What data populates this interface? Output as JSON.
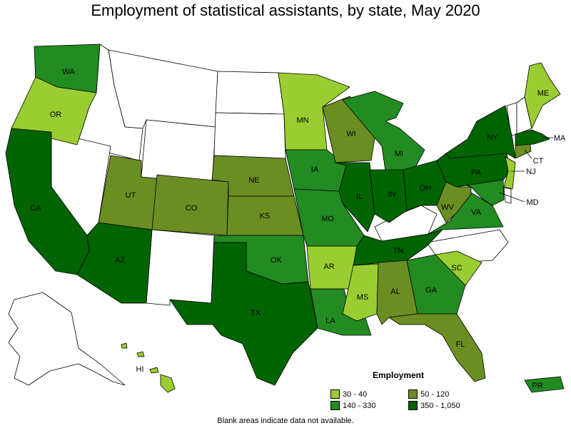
{
  "title": "Employment of statistical assistants, by state, May 2020",
  "colors": {
    "c1": "#9acd32",
    "c2": "#228b22",
    "c3": "#6b8e23",
    "c4": "#006400",
    "blank": "#ffffff"
  },
  "legend": {
    "title": "Employment",
    "items": [
      {
        "label": "30 - 40",
        "color": "#9acd32"
      },
      {
        "label": "50 - 120",
        "color": "#6b8e23"
      },
      {
        "label": "140 - 330",
        "color": "#228b22"
      },
      {
        "label": "350 - 1,050",
        "color": "#006400"
      }
    ]
  },
  "footnote": "Blank areas indicate data not available.",
  "states": [
    {
      "code": "WA",
      "range": "140 - 330"
    },
    {
      "code": "OR",
      "range": "30 - 40"
    },
    {
      "code": "CA",
      "range": "350 - 1,050"
    },
    {
      "code": "AZ",
      "range": "350 - 1,050"
    },
    {
      "code": "UT",
      "range": "50 - 120"
    },
    {
      "code": "CO",
      "range": "50 - 120"
    },
    {
      "code": "NE",
      "range": "50 - 120"
    },
    {
      "code": "KS",
      "range": "50 - 120"
    },
    {
      "code": "OK",
      "range": "140 - 330"
    },
    {
      "code": "TX",
      "range": "350 - 1,050"
    },
    {
      "code": "MN",
      "range": "30 - 40"
    },
    {
      "code": "IA",
      "range": "140 - 330"
    },
    {
      "code": "MO",
      "range": "140 - 330"
    },
    {
      "code": "AR",
      "range": "30 - 40"
    },
    {
      "code": "LA",
      "range": "140 - 330"
    },
    {
      "code": "WI",
      "range": "50 - 120"
    },
    {
      "code": "IL",
      "range": "350 - 1,050"
    },
    {
      "code": "MI",
      "range": "140 - 330"
    },
    {
      "code": "IN",
      "range": "350 - 1,050"
    },
    {
      "code": "OH",
      "range": "350 - 1,050"
    },
    {
      "code": "TN",
      "range": "350 - 1,050"
    },
    {
      "code": "MS",
      "range": "30 - 40"
    },
    {
      "code": "AL",
      "range": "50 - 120"
    },
    {
      "code": "GA",
      "range": "140 - 330"
    },
    {
      "code": "FL",
      "range": "50 - 120"
    },
    {
      "code": "SC",
      "range": "30 - 40"
    },
    {
      "code": "VA",
      "range": "140 - 330"
    },
    {
      "code": "WV",
      "range": "50 - 120"
    },
    {
      "code": "PA",
      "range": "350 - 1,050"
    },
    {
      "code": "NY",
      "range": "350 - 1,050"
    },
    {
      "code": "ME",
      "range": "30 - 40"
    },
    {
      "code": "MA",
      "range": "350 - 1,050"
    },
    {
      "code": "CT",
      "range": "50 - 120"
    },
    {
      "code": "NJ",
      "range": "30 - 40"
    },
    {
      "code": "MD",
      "range": "140 - 330"
    },
    {
      "code": "HI",
      "range": "30 - 40"
    },
    {
      "code": "PR",
      "range": "140 - 330"
    }
  ]
}
